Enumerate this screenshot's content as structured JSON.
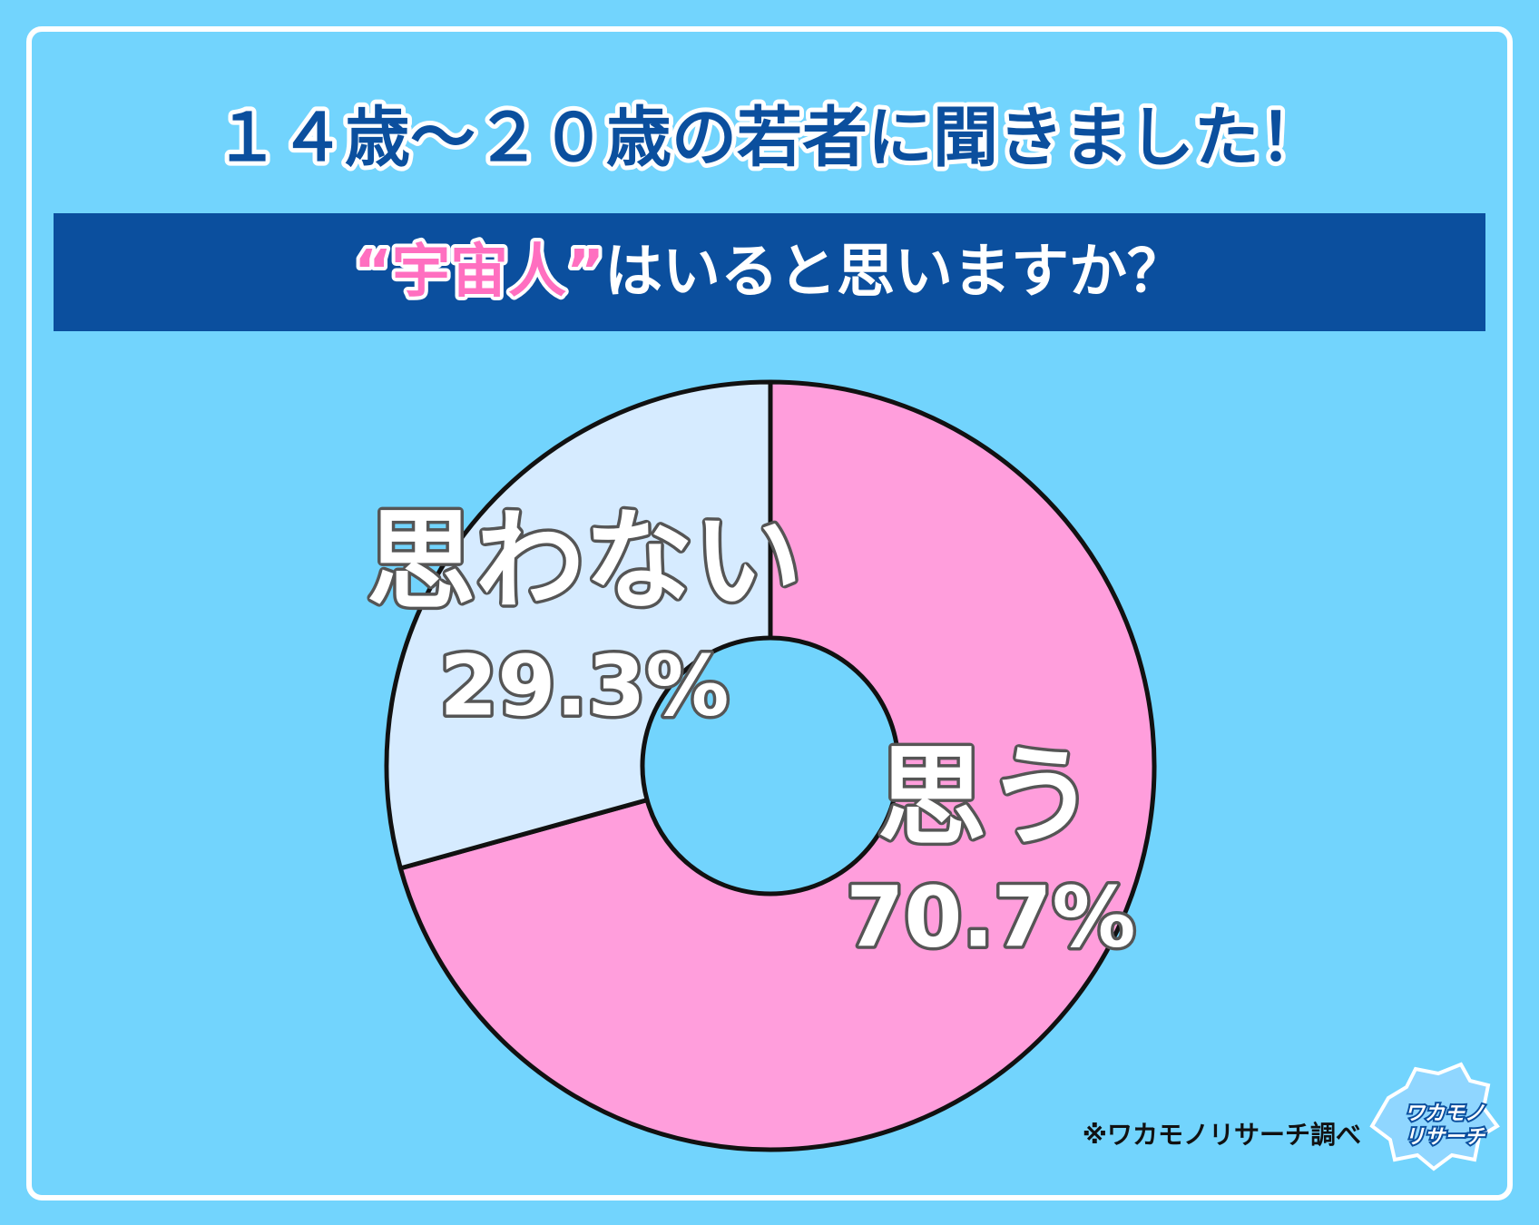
{
  "chart_data": {
    "type": "pie",
    "donut": true,
    "title": "１４歳～２０歳の若者に聞きました！",
    "subtitle": [
      "“宇宙人”",
      "はいると思いますか？"
    ],
    "categories": [
      "思う",
      "思わない"
    ],
    "values": [
      70.7,
      29.3
    ],
    "value_labels": [
      "70.7%",
      "29.3%"
    ],
    "colors": [
      "#ff9edc",
      "#d6ebff"
    ],
    "note": "※ワカモノリサーチ調べ"
  },
  "logo": [
    "ワカモノ",
    "リサーチ"
  ]
}
